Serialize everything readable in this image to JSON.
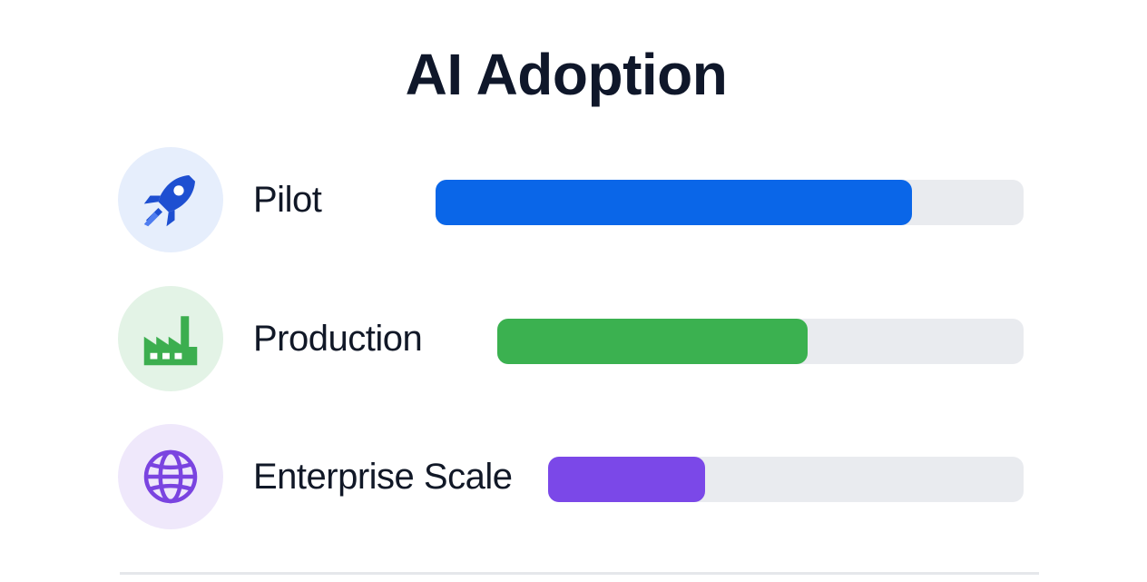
{
  "chart_data": {
    "type": "bar",
    "orientation": "horizontal",
    "title": "AI Adoption",
    "categories": [
      "Pilot",
      "Production",
      "Enterprise Scale"
    ],
    "values": [
      81,
      59,
      33
    ],
    "value_unit": "percent",
    "xlim": [
      0,
      100
    ],
    "grid": false,
    "legend": "none",
    "rows": [
      {
        "label": "Pilot",
        "value": 81,
        "icon": "rocket-icon",
        "color": "#0a66e8",
        "icon_bg": "#e6eefc"
      },
      {
        "label": "Production",
        "value": 59,
        "icon": "factory-icon",
        "color": "#3bb150",
        "icon_bg": "#e3f3e6"
      },
      {
        "label": "Enterprise Scale",
        "value": 33,
        "icon": "globe-icon",
        "color": "#7b48e8",
        "icon_bg": "#efe8fb"
      }
    ]
  }
}
